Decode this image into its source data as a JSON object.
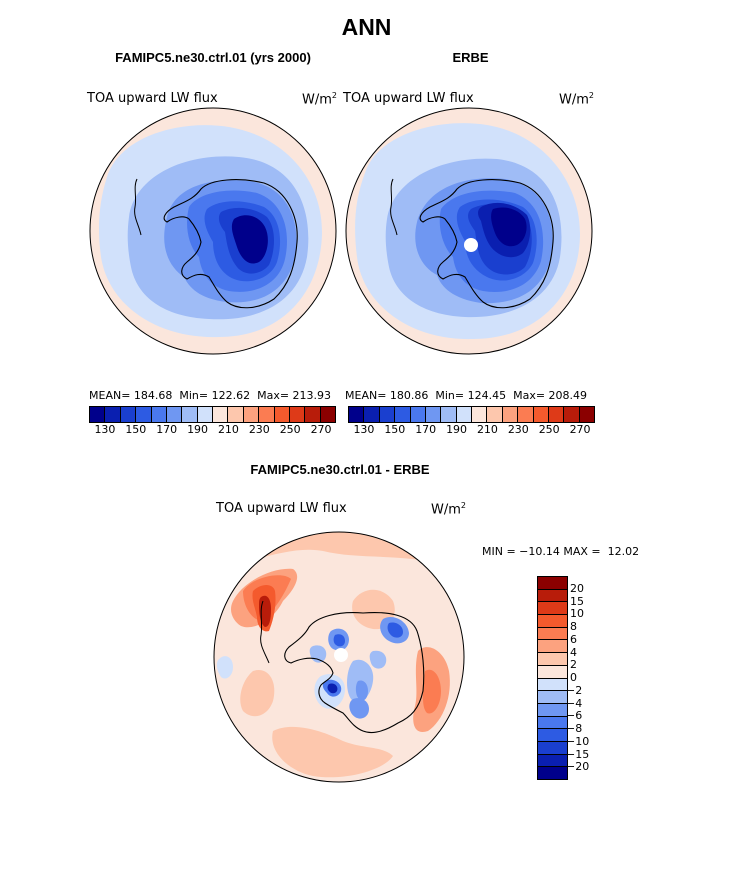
{
  "title": "ANN",
  "panels": [
    {
      "title": "FAMIPC5.ne30.ctrl.01 (yrs 2000)",
      "variable": "TOA upward LW flux",
      "units_base": "W/m",
      "units_exp": "2",
      "stats": "MEAN= 184.68  Min= 122.62  Max= 213.93"
    },
    {
      "title": "ERBE",
      "variable": "TOA upward LW flux",
      "units_base": "W/m",
      "units_exp": "2",
      "stats": "MEAN= 180.86  Min= 124.45  Max= 208.49"
    }
  ],
  "diff": {
    "title": "FAMIPC5.ne30.ctrl.01 - ERBE",
    "variable": "TOA upward LW flux",
    "units_base": "W/m",
    "units_exp": "2",
    "minmax": "MIN = −10.14 MAX =  12.02"
  },
  "chart_data": [
    {
      "type": "heatmap",
      "projection": "south-polar-stereographic",
      "title": "FAMIPC5.ne30.ctrl.01 (yrs 2000)",
      "variable": "TOA upward LW flux",
      "units": "W/m2",
      "mean": 184.68,
      "min": 122.62,
      "max": 213.93,
      "colorbar_levels": [
        130,
        140,
        150,
        160,
        170,
        180,
        190,
        200,
        210,
        220,
        230,
        240,
        250,
        260,
        270
      ],
      "colorbar_ticks": [
        "130",
        "150",
        "170",
        "190",
        "210",
        "230",
        "250",
        "270"
      ],
      "colors": [
        "#00008b",
        "#0a1fb0",
        "#1a3fcf",
        "#2d5be3",
        "#4a78ee",
        "#6f97f2",
        "#9fbcf6",
        "#d1e1fb",
        "#fbe6dc",
        "#fdc7ad",
        "#fca27f",
        "#fb7c52",
        "#f45a2d",
        "#de3a18",
        "#b81c0a",
        "#8b0000"
      ]
    },
    {
      "type": "heatmap",
      "projection": "south-polar-stereographic",
      "title": "ERBE",
      "variable": "TOA upward LW flux",
      "units": "W/m2",
      "mean": 180.86,
      "min": 124.45,
      "max": 208.49,
      "colorbar_levels": [
        130,
        140,
        150,
        160,
        170,
        180,
        190,
        200,
        210,
        220,
        230,
        240,
        250,
        260,
        270
      ],
      "colorbar_ticks": [
        "130",
        "150",
        "170",
        "190",
        "210",
        "230",
        "250",
        "270"
      ],
      "colors": [
        "#00008b",
        "#0a1fb0",
        "#1a3fcf",
        "#2d5be3",
        "#4a78ee",
        "#6f97f2",
        "#9fbcf6",
        "#d1e1fb",
        "#fbe6dc",
        "#fdc7ad",
        "#fca27f",
        "#fb7c52",
        "#f45a2d",
        "#de3a18",
        "#b81c0a",
        "#8b0000"
      ]
    },
    {
      "type": "heatmap",
      "projection": "south-polar-stereographic",
      "title": "FAMIPC5.ne30.ctrl.01 - ERBE",
      "variable": "TOA upward LW flux",
      "units": "W/m2",
      "min": -10.14,
      "max": 12.02,
      "colorbar_levels": [
        "20",
        "15",
        "10",
        "8",
        "6",
        "4",
        "2",
        "0",
        "−2",
        "−4",
        "−6",
        "−8",
        "−10",
        "−15",
        "−20"
      ],
      "colors": [
        "#8b0000",
        "#b81c0a",
        "#de3a18",
        "#f45a2d",
        "#fb7c52",
        "#fca27f",
        "#fdc7ad",
        "#fbe6dc",
        "#d1e1fb",
        "#9fbcf6",
        "#6f97f2",
        "#4a78ee",
        "#2d5be3",
        "#1a3fcf",
        "#0a1fb0",
        "#00008b"
      ]
    }
  ]
}
